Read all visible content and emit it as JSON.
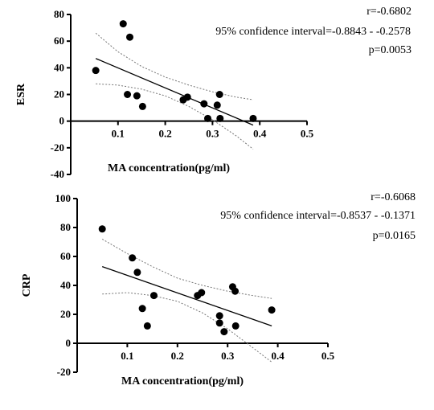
{
  "chart_data": [
    {
      "type": "scatter",
      "xlabel": "MA concentration(pg/ml)",
      "ylabel": "ESR",
      "xlim": [
        0,
        0.5
      ],
      "ylim": [
        -40,
        80
      ],
      "xticks": [
        "0.1",
        "0.2",
        "0.3",
        "0.4",
        "0.5"
      ],
      "yticks": [
        "80",
        "60",
        "40",
        "20",
        "0",
        "-20",
        "-40"
      ],
      "xtick_values": [
        0.1,
        0.2,
        0.3,
        0.4,
        0.5
      ],
      "ytick_values": [
        80,
        60,
        40,
        20,
        0,
        -20,
        -40
      ],
      "annotations": [
        "r=-0.6802",
        "95% confidence interval=-0.8843 - -0.2578",
        "p=0.0053"
      ],
      "points": [
        {
          "x": 0.053,
          "y": 38
        },
        {
          "x": 0.111,
          "y": 73
        },
        {
          "x": 0.125,
          "y": 63
        },
        {
          "x": 0.12,
          "y": 20
        },
        {
          "x": 0.14,
          "y": 19
        },
        {
          "x": 0.152,
          "y": 11
        },
        {
          "x": 0.238,
          "y": 16
        },
        {
          "x": 0.247,
          "y": 18
        },
        {
          "x": 0.282,
          "y": 13
        },
        {
          "x": 0.29,
          "y": 2
        },
        {
          "x": 0.31,
          "y": 12
        },
        {
          "x": 0.315,
          "y": 20
        },
        {
          "x": 0.316,
          "y": 2
        },
        {
          "x": 0.386,
          "y": 2
        }
      ],
      "fit": {
        "x": [
          0.053,
          0.386
        ],
        "y": [
          47,
          -3
        ]
      },
      "ci_upper": {
        "x": [
          0.053,
          0.1,
          0.15,
          0.2,
          0.25,
          0.3,
          0.35,
          0.386
        ],
        "y": [
          66,
          52,
          41,
          33,
          27,
          22,
          18,
          16
        ]
      },
      "ci_lower": {
        "x": [
          0.053,
          0.1,
          0.15,
          0.2,
          0.25,
          0.3,
          0.35,
          0.386
        ],
        "y": [
          28,
          27,
          24,
          19,
          11,
          1,
          -11,
          -21
        ]
      },
      "grid": false
    },
    {
      "type": "scatter",
      "xlabel": "MA concentration(pg/ml)",
      "ylabel": "CRP",
      "xlim": [
        0,
        0.5
      ],
      "ylim": [
        -20,
        100
      ],
      "xticks": [
        "0.1",
        "0.2",
        "0.3",
        "0.4",
        "0.5"
      ],
      "yticks": [
        "100",
        "80",
        "60",
        "40",
        "20",
        "0",
        "-20"
      ],
      "xtick_values": [
        0.1,
        0.2,
        0.3,
        0.4,
        0.5
      ],
      "ytick_values": [
        100,
        80,
        60,
        40,
        20,
        0,
        -20
      ],
      "annotations": [
        "r=-0.6068",
        "95% confidence interval=-0.8537 - -0.1371",
        "p=0.0165"
      ],
      "points": [
        {
          "x": 0.05,
          "y": 79
        },
        {
          "x": 0.11,
          "y": 59
        },
        {
          "x": 0.12,
          "y": 49
        },
        {
          "x": 0.13,
          "y": 24
        },
        {
          "x": 0.14,
          "y": 12
        },
        {
          "x": 0.153,
          "y": 33
        },
        {
          "x": 0.24,
          "y": 33
        },
        {
          "x": 0.248,
          "y": 35
        },
        {
          "x": 0.284,
          "y": 19
        },
        {
          "x": 0.284,
          "y": 14
        },
        {
          "x": 0.293,
          "y": 8
        },
        {
          "x": 0.31,
          "y": 39
        },
        {
          "x": 0.315,
          "y": 36
        },
        {
          "x": 0.316,
          "y": 12
        },
        {
          "x": 0.388,
          "y": 23
        }
      ],
      "fit": {
        "x": [
          0.05,
          0.388
        ],
        "y": [
          53,
          12
        ]
      },
      "ci_upper": {
        "x": [
          0.05,
          0.1,
          0.15,
          0.2,
          0.25,
          0.3,
          0.35,
          0.388
        ],
        "y": [
          72,
          62,
          53,
          45,
          40,
          36,
          33,
          31
        ]
      },
      "ci_lower": {
        "x": [
          0.05,
          0.1,
          0.15,
          0.2,
          0.25,
          0.3,
          0.35,
          0.388
        ],
        "y": [
          34,
          35,
          33,
          29,
          21,
          10,
          -3,
          -13
        ]
      },
      "grid": false
    }
  ]
}
